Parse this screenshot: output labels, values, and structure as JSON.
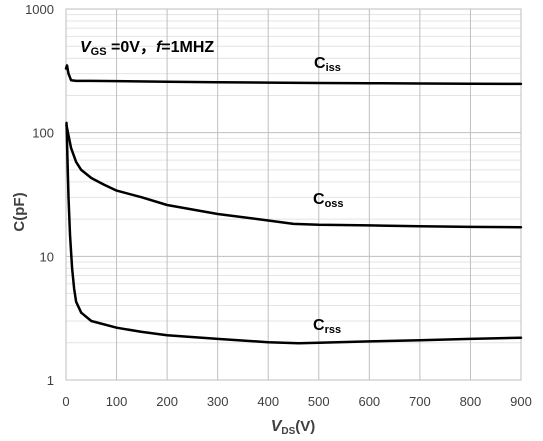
{
  "chart_data": {
    "type": "line",
    "title": "",
    "annotation": {
      "vgs_main": "V",
      "vgs_sub": "GS",
      "vgs_rest": " =0V，",
      "f_main": "f",
      "f_rest": "=1MHZ"
    },
    "xlabel": {
      "main": "V",
      "sub": "DS",
      "unit": "(V)"
    },
    "ylabel": "C(pF)",
    "xlim": [
      0,
      900
    ],
    "ylim": [
      1,
      1000
    ],
    "y_scale": "log",
    "grid": true,
    "x_ticks": [
      "0",
      "100",
      "200",
      "300",
      "400",
      "500",
      "600",
      "700",
      "800",
      "900"
    ],
    "y_ticks": [
      "1",
      "10",
      "100",
      "1000"
    ],
    "series": [
      {
        "name": "Ciss",
        "label_main": "C",
        "label_sub": "iss",
        "color": "#000000",
        "x": [
          0,
          2,
          5,
          10,
          20,
          50,
          100,
          200,
          300,
          400,
          500,
          600,
          700,
          800,
          900
        ],
        "y": [
          330,
          350,
          300,
          265,
          262,
          262,
          261,
          258,
          256,
          254,
          252,
          251,
          250,
          249,
          248
        ]
      },
      {
        "name": "Coss",
        "label_main": "C",
        "label_sub": "oss",
        "color": "#000000",
        "x": [
          1,
          5,
          10,
          20,
          30,
          50,
          75,
          100,
          150,
          200,
          300,
          400,
          450,
          500,
          600,
          700,
          800,
          900
        ],
        "y": [
          115,
          95,
          75,
          58,
          50,
          43,
          38,
          34,
          30,
          26,
          22,
          19.5,
          18.3,
          18,
          17.8,
          17.5,
          17.3,
          17.2
        ]
      },
      {
        "name": "Crss",
        "label_main": "C",
        "label_sub": "rss",
        "color": "#000000",
        "x": [
          1,
          3,
          5,
          8,
          12,
          16,
          20,
          30,
          50,
          100,
          150,
          200,
          300,
          400,
          460,
          500,
          600,
          700,
          800,
          900
        ],
        "y": [
          120,
          60,
          30,
          15,
          8,
          5.5,
          4.3,
          3.5,
          3.0,
          2.65,
          2.45,
          2.3,
          2.15,
          2.02,
          1.98,
          2.0,
          2.05,
          2.1,
          2.15,
          2.2
        ]
      }
    ]
  }
}
